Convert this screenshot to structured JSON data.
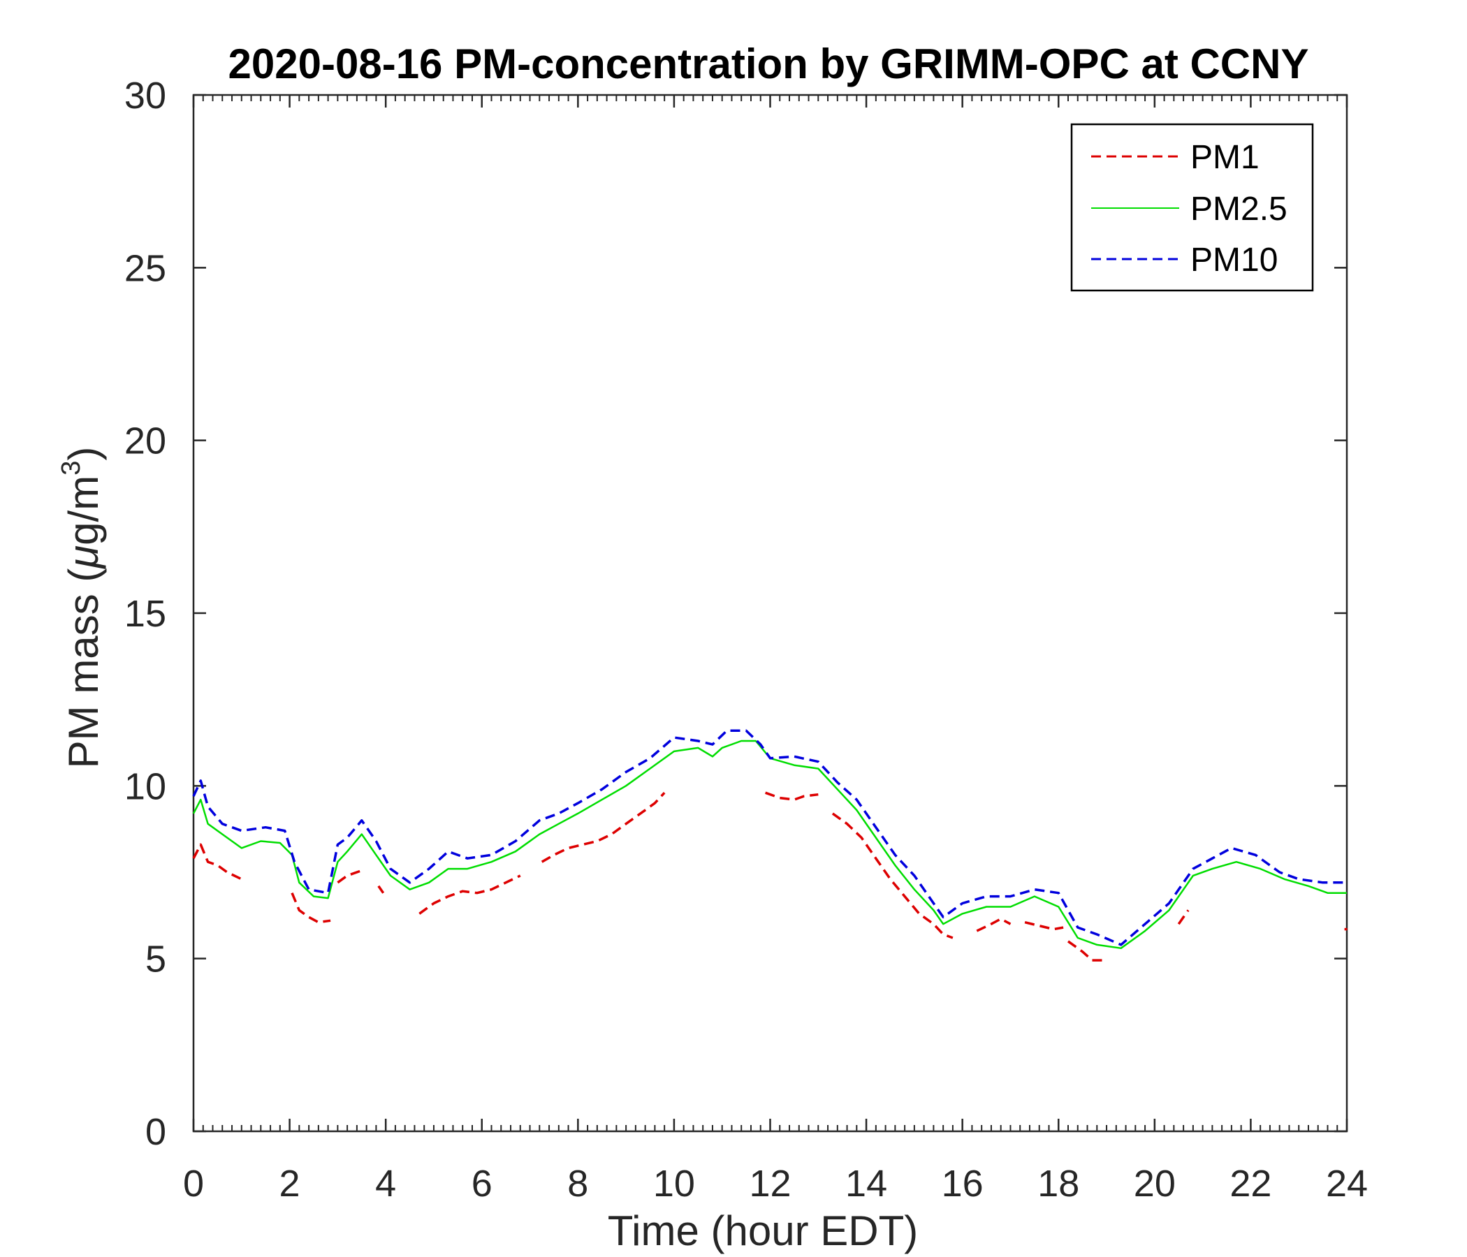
{
  "chart_data": {
    "type": "line",
    "title": "2020-08-16 PM-concentration by GRIMM-OPC at CCNY",
    "xlabel": "Time (hour EDT)",
    "ylabel_prefix": "PM mass (",
    "ylabel_mu": "μ",
    "ylabel_unit": "g/m",
    "ylabel_sup": "3",
    "ylabel_suffix": ")",
    "xlim": [
      0,
      24
    ],
    "ylim": [
      0,
      30
    ],
    "xticks": [
      0,
      2,
      4,
      6,
      8,
      10,
      12,
      14,
      16,
      18,
      20,
      22,
      24
    ],
    "xtick_labels": [
      "0",
      "2",
      "4",
      "6",
      "8",
      "10",
      "12",
      "14",
      "16",
      "18",
      "20",
      "22",
      "24"
    ],
    "yticks": [
      0,
      5,
      10,
      15,
      20,
      25,
      30
    ],
    "ytick_labels": [
      "0",
      "5",
      "10",
      "15",
      "20",
      "25",
      "30"
    ],
    "grid": false,
    "legend_position": "top-right",
    "series": [
      {
        "name": "PM1",
        "color": "#dd0000",
        "style": "dashed",
        "segments": [
          [
            [
              0.0,
              7.9
            ],
            [
              0.15,
              8.3
            ],
            [
              0.3,
              7.8
            ],
            [
              0.5,
              7.7
            ],
            [
              0.7,
              7.5
            ],
            [
              1.0,
              7.3
            ]
          ],
          [
            [
              2.05,
              6.9
            ],
            [
              2.2,
              6.4
            ],
            [
              2.4,
              6.2
            ],
            [
              2.6,
              6.05
            ],
            [
              2.85,
              6.1
            ]
          ],
          [
            [
              3.0,
              7.2
            ],
            [
              3.2,
              7.4
            ],
            [
              3.5,
              7.55
            ]
          ],
          [
            [
              3.85,
              7.1
            ],
            [
              3.95,
              6.9
            ]
          ],
          [
            [
              4.7,
              6.3
            ],
            [
              5.0,
              6.6
            ],
            [
              5.3,
              6.8
            ],
            [
              5.6,
              6.95
            ],
            [
              5.9,
              6.9
            ],
            [
              6.2,
              7.0
            ],
            [
              6.5,
              7.2
            ],
            [
              6.8,
              7.4
            ]
          ],
          [
            [
              7.25,
              7.8
            ],
            [
              7.5,
              8.0
            ],
            [
              7.8,
              8.2
            ],
            [
              8.1,
              8.3
            ],
            [
              8.4,
              8.4
            ],
            [
              8.7,
              8.6
            ],
            [
              9.0,
              8.9
            ],
            [
              9.3,
              9.2
            ],
            [
              9.6,
              9.5
            ],
            [
              9.8,
              9.8
            ]
          ],
          [
            [
              11.9,
              9.8
            ],
            [
              12.2,
              9.65
            ],
            [
              12.5,
              9.6
            ],
            [
              12.7,
              9.7
            ],
            [
              13.0,
              9.75
            ]
          ],
          [
            [
              13.3,
              9.2
            ],
            [
              13.6,
              8.9
            ],
            [
              13.9,
              8.5
            ],
            [
              14.2,
              7.9
            ],
            [
              14.5,
              7.3
            ],
            [
              14.8,
              6.8
            ],
            [
              15.1,
              6.3
            ],
            [
              15.4,
              6.0
            ],
            [
              15.6,
              5.7
            ],
            [
              15.8,
              5.6
            ]
          ],
          [
            [
              16.3,
              5.8
            ],
            [
              16.6,
              6.0
            ],
            [
              16.8,
              6.15
            ],
            [
              17.0,
              6.0
            ]
          ],
          [
            [
              17.3,
              6.05
            ],
            [
              17.6,
              5.95
            ],
            [
              17.9,
              5.85
            ],
            [
              18.1,
              5.9
            ]
          ],
          [
            [
              18.2,
              5.5
            ],
            [
              18.5,
              5.2
            ],
            [
              18.7,
              4.95
            ],
            [
              19.0,
              4.95
            ]
          ],
          [
            [
              20.5,
              6.0
            ],
            [
              20.7,
              6.4
            ]
          ],
          [
            [
              23.95,
              5.85
            ]
          ]
        ]
      },
      {
        "name": "PM2.5",
        "color": "#00dd00",
        "style": "solid",
        "points": [
          [
            0.0,
            9.2
          ],
          [
            0.15,
            9.6
          ],
          [
            0.3,
            8.9
          ],
          [
            0.6,
            8.6
          ],
          [
            1.0,
            8.2
          ],
          [
            1.4,
            8.4
          ],
          [
            1.8,
            8.35
          ],
          [
            2.05,
            8.0
          ],
          [
            2.2,
            7.2
          ],
          [
            2.5,
            6.8
          ],
          [
            2.8,
            6.75
          ],
          [
            3.0,
            7.8
          ],
          [
            3.2,
            8.1
          ],
          [
            3.5,
            8.6
          ],
          [
            3.8,
            8.0
          ],
          [
            4.1,
            7.4
          ],
          [
            4.5,
            7.0
          ],
          [
            4.9,
            7.2
          ],
          [
            5.3,
            7.6
          ],
          [
            5.7,
            7.6
          ],
          [
            6.2,
            7.8
          ],
          [
            6.7,
            8.1
          ],
          [
            7.2,
            8.6
          ],
          [
            7.6,
            8.9
          ],
          [
            8.0,
            9.2
          ],
          [
            8.5,
            9.6
          ],
          [
            9.0,
            10.0
          ],
          [
            9.5,
            10.5
          ],
          [
            10.0,
            11.0
          ],
          [
            10.5,
            11.1
          ],
          [
            10.8,
            10.85
          ],
          [
            11.0,
            11.1
          ],
          [
            11.4,
            11.3
          ],
          [
            11.7,
            11.3
          ],
          [
            12.0,
            10.8
          ],
          [
            12.5,
            10.6
          ],
          [
            13.0,
            10.5
          ],
          [
            13.4,
            9.9
          ],
          [
            13.8,
            9.3
          ],
          [
            14.2,
            8.5
          ],
          [
            14.6,
            7.7
          ],
          [
            15.0,
            7.0
          ],
          [
            15.4,
            6.4
          ],
          [
            15.6,
            6.0
          ],
          [
            16.0,
            6.3
          ],
          [
            16.5,
            6.5
          ],
          [
            17.0,
            6.5
          ],
          [
            17.5,
            6.8
          ],
          [
            18.0,
            6.5
          ],
          [
            18.4,
            5.6
          ],
          [
            18.8,
            5.4
          ],
          [
            19.3,
            5.3
          ],
          [
            19.8,
            5.8
          ],
          [
            20.3,
            6.4
          ],
          [
            20.8,
            7.4
          ],
          [
            21.2,
            7.6
          ],
          [
            21.7,
            7.8
          ],
          [
            22.2,
            7.6
          ],
          [
            22.7,
            7.3
          ],
          [
            23.2,
            7.1
          ],
          [
            23.6,
            6.9
          ],
          [
            24.0,
            6.9
          ]
        ]
      },
      {
        "name": "PM10",
        "color": "#0000dd",
        "style": "dashed",
        "points": [
          [
            0.0,
            9.7
          ],
          [
            0.15,
            10.15
          ],
          [
            0.3,
            9.4
          ],
          [
            0.6,
            8.9
          ],
          [
            1.0,
            8.7
          ],
          [
            1.5,
            8.8
          ],
          [
            1.9,
            8.7
          ],
          [
            2.1,
            7.8
          ],
          [
            2.4,
            7.0
          ],
          [
            2.8,
            6.9
          ],
          [
            3.0,
            8.3
          ],
          [
            3.2,
            8.5
          ],
          [
            3.5,
            9.0
          ],
          [
            3.8,
            8.4
          ],
          [
            4.1,
            7.6
          ],
          [
            4.5,
            7.2
          ],
          [
            4.9,
            7.6
          ],
          [
            5.3,
            8.1
          ],
          [
            5.7,
            7.9
          ],
          [
            6.2,
            8.0
          ],
          [
            6.7,
            8.4
          ],
          [
            7.2,
            9.0
          ],
          [
            7.6,
            9.2
          ],
          [
            8.0,
            9.5
          ],
          [
            8.5,
            9.9
          ],
          [
            9.0,
            10.4
          ],
          [
            9.5,
            10.8
          ],
          [
            10.0,
            11.4
          ],
          [
            10.5,
            11.3
          ],
          [
            10.8,
            11.2
          ],
          [
            11.1,
            11.6
          ],
          [
            11.5,
            11.6
          ],
          [
            11.8,
            11.2
          ],
          [
            12.0,
            10.8
          ],
          [
            12.5,
            10.85
          ],
          [
            13.0,
            10.7
          ],
          [
            13.4,
            10.1
          ],
          [
            13.8,
            9.6
          ],
          [
            14.2,
            8.8
          ],
          [
            14.6,
            8.0
          ],
          [
            15.0,
            7.4
          ],
          [
            15.4,
            6.6
          ],
          [
            15.6,
            6.2
          ],
          [
            16.0,
            6.6
          ],
          [
            16.5,
            6.8
          ],
          [
            17.0,
            6.8
          ],
          [
            17.5,
            7.0
          ],
          [
            18.0,
            6.9
          ],
          [
            18.4,
            5.9
          ],
          [
            18.8,
            5.7
          ],
          [
            19.3,
            5.4
          ],
          [
            19.8,
            6.0
          ],
          [
            20.3,
            6.6
          ],
          [
            20.8,
            7.6
          ],
          [
            21.2,
            7.9
          ],
          [
            21.6,
            8.2
          ],
          [
            22.1,
            8.0
          ],
          [
            22.6,
            7.5
          ],
          [
            23.0,
            7.3
          ],
          [
            23.5,
            7.2
          ],
          [
            24.0,
            7.2
          ]
        ]
      }
    ]
  }
}
